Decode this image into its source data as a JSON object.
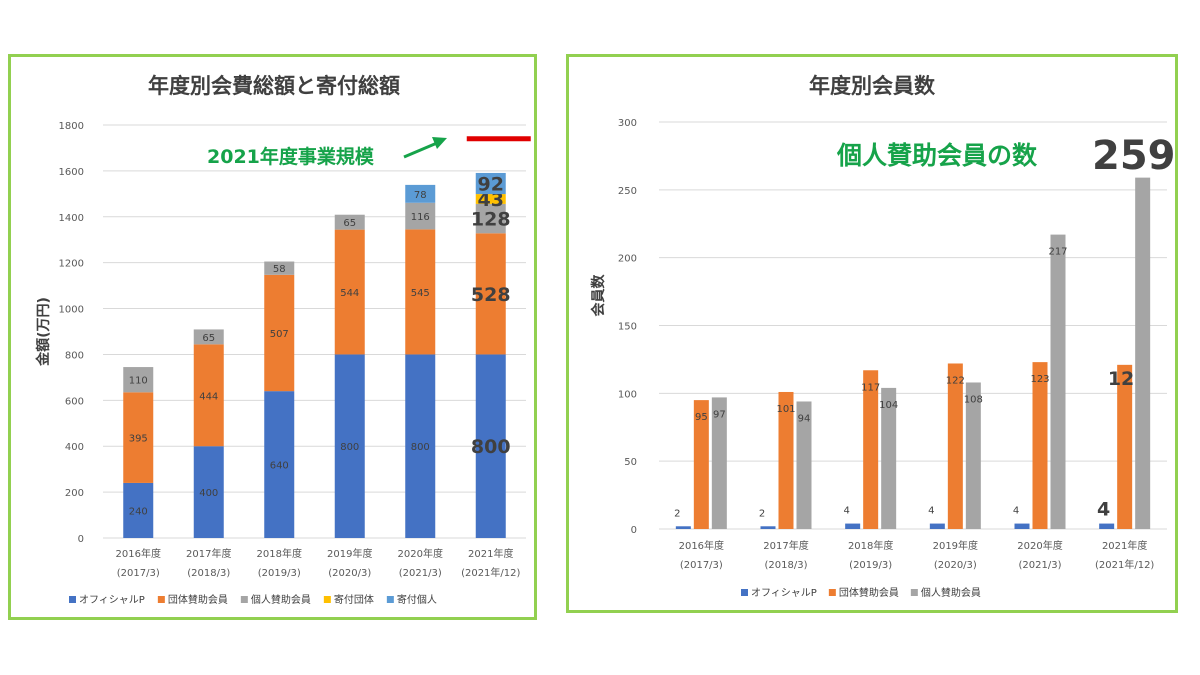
{
  "colors": {
    "official": "#4472c4",
    "group": "#ed7d31",
    "individual": "#a5a5a5",
    "donation_group": "#ffc000",
    "donation_individual": "#5b9bd5",
    "panel_border": "#92d050",
    "highlight_text": "#16a34a",
    "target_line": "#e00000"
  },
  "chart_data": [
    {
      "type": "bar",
      "stacked": true,
      "title": "年度別会費総額と寄付総額",
      "ylabel": "金額(万円)",
      "xlabel": "",
      "ylim": [
        0,
        1800
      ],
      "yticks": [
        0,
        200,
        400,
        600,
        800,
        1000,
        1200,
        1400,
        1600,
        1800
      ],
      "grid": true,
      "legend_position": "bottom",
      "categories": [
        [
          "2016年度",
          "(2017/3)"
        ],
        [
          "2017年度",
          "(2018/3)"
        ],
        [
          "2018年度",
          "(2019/3)"
        ],
        [
          "2019年度",
          "(2020/3)"
        ],
        [
          "2020年度",
          "(2021/3)"
        ],
        [
          "2021年度",
          "(2021年/12)"
        ]
      ],
      "series": [
        {
          "name": "オフィシャルP",
          "values": [
            240,
            400,
            640,
            800,
            800,
            800
          ]
        },
        {
          "name": "団体賛助会員",
          "values": [
            395,
            444,
            507,
            544,
            545,
            528
          ]
        },
        {
          "name": "個人賛助会員",
          "values": [
            110,
            65,
            58,
            65,
            116,
            128
          ]
        },
        {
          "name": "寄付団体",
          "values": [
            0,
            0,
            0,
            0,
            0,
            43
          ]
        },
        {
          "name": "寄付個人",
          "values": [
            0,
            0,
            0,
            0,
            78,
            92
          ]
        }
      ],
      "annotations": [
        {
          "text": "2021年度事業規模",
          "target_value": 1740
        }
      ]
    },
    {
      "type": "bar",
      "stacked": false,
      "title": "年度別会員数",
      "ylabel": "会員数",
      "xlabel": "",
      "ylim": [
        0,
        300
      ],
      "yticks": [
        0,
        50,
        100,
        150,
        200,
        250,
        300
      ],
      "grid": true,
      "legend_position": "bottom",
      "categories": [
        [
          "2016年度",
          "(2017/3)"
        ],
        [
          "2017年度",
          "(2018/3)"
        ],
        [
          "2018年度",
          "(2019/3)"
        ],
        [
          "2019年度",
          "(2020/3)"
        ],
        [
          "2020年度",
          "(2021/3)"
        ],
        [
          "2021年度",
          "(2021年/12)"
        ]
      ],
      "series": [
        {
          "name": "オフィシャルP",
          "values": [
            2,
            2,
            4,
            4,
            4,
            4
          ]
        },
        {
          "name": "団体賛助会員",
          "values": [
            95,
            101,
            117,
            122,
            123,
            121
          ]
        },
        {
          "name": "個人賛助会員",
          "values": [
            97,
            94,
            104,
            108,
            217,
            259
          ]
        }
      ],
      "annotations": [
        {
          "text": "個人賛助会員の数",
          "value": "259"
        }
      ]
    }
  ]
}
